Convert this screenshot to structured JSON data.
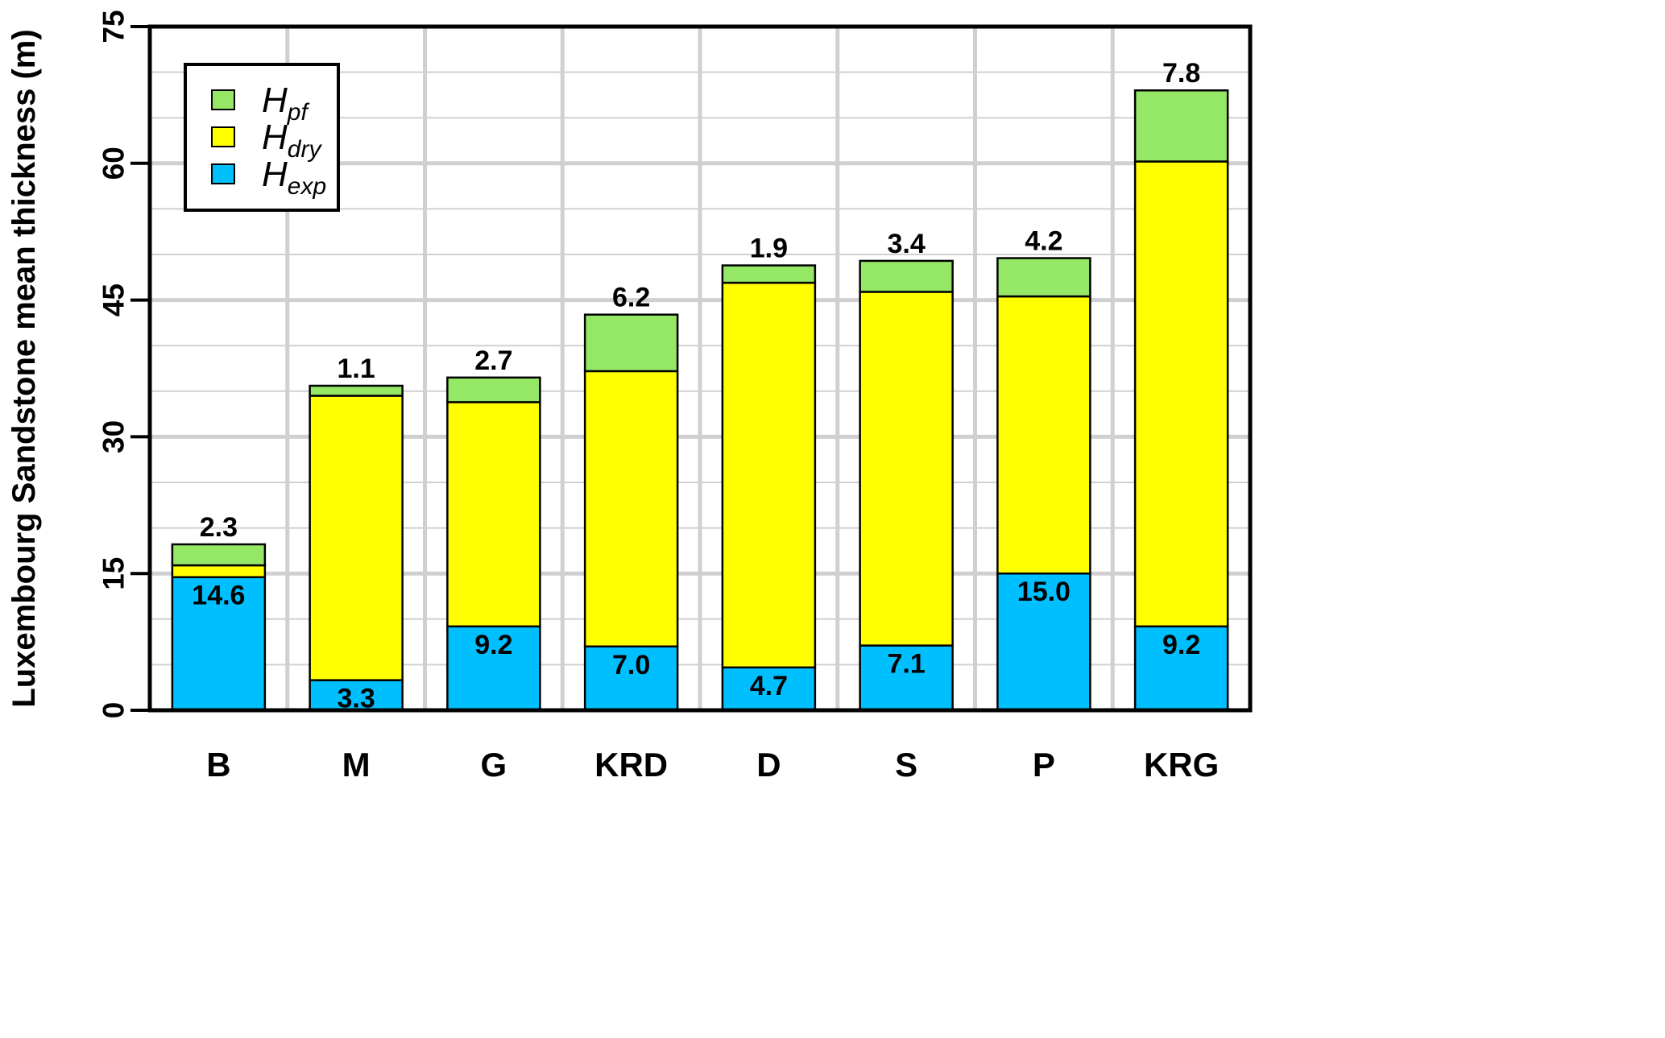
{
  "chart_data": {
    "type": "bar",
    "stacked": true,
    "categories": [
      "B",
      "M",
      "G",
      "KRD",
      "D",
      "S",
      "P",
      "KRG"
    ],
    "series": [
      {
        "name": "H",
        "name_sub": "exp",
        "color": "#00BFFF",
        "values": [
          14.6,
          3.3,
          9.2,
          7.0,
          4.7,
          7.1,
          15.0,
          9.2
        ]
      },
      {
        "name": "H",
        "name_sub": "dry",
        "color": "#FFFF00",
        "values": [
          1.3,
          31.2,
          24.6,
          30.2,
          42.2,
          38.8,
          30.4,
          51.0
        ]
      },
      {
        "name": "H",
        "name_sub": "pf",
        "color": "#95E866",
        "values": [
          2.3,
          1.1,
          2.7,
          6.2,
          1.9,
          3.4,
          4.2,
          7.8
        ]
      }
    ],
    "bottom_labels": [
      "14.6",
      "3.3",
      "9.2",
      "7.0",
      "4.7",
      "7.1",
      "15.0",
      "9.2"
    ],
    "top_labels": [
      "2.3",
      "1.1",
      "2.7",
      "6.2",
      "1.9",
      "3.4",
      "4.2",
      "7.8"
    ],
    "ylabel": "Luxembourg Sandstone mean thickness (m)",
    "xlabel": "",
    "ylim": [
      0,
      75
    ],
    "yticks": [
      0,
      15,
      30,
      45,
      60,
      75
    ],
    "ytick_labels": [
      "0",
      "15",
      "30",
      "45",
      "60",
      "75"
    ],
    "minor_grid_step": 5,
    "grid": true,
    "legend_position": "top-left",
    "legend_order": [
      2,
      1,
      0
    ]
  }
}
